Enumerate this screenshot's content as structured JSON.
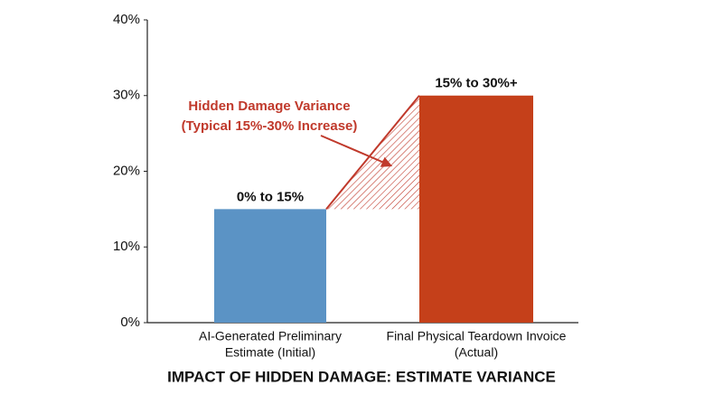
{
  "chart_data": {
    "type": "bar",
    "title": "IMPACT OF HIDDEN DAMAGE: ESTIMATE VARIANCE",
    "categories": [
      [
        "AI-Generated Preliminary",
        "Estimate (Initial)"
      ],
      [
        "Final Physical Teardown Invoice",
        "(Actual)"
      ]
    ],
    "values": [
      15,
      30
    ],
    "colors": [
      "#5b93c5",
      "#c5401a"
    ],
    "bar_annotations": [
      "0% to 15%",
      "15% to 30%+"
    ],
    "annotation": [
      "Hidden Damage Variance",
      "(Typical 15%-30% Increase)"
    ],
    "annotation_color": "#c0392b",
    "ylim": [
      0,
      40
    ],
    "yticks": [
      {
        "value": 0,
        "label": "0%"
      },
      {
        "value": 10,
        "label": "10%"
      },
      {
        "value": 20,
        "label": "20%"
      },
      {
        "value": 30,
        "label": "30%"
      },
      {
        "value": 40,
        "label": "40%"
      }
    ],
    "grid": false
  }
}
